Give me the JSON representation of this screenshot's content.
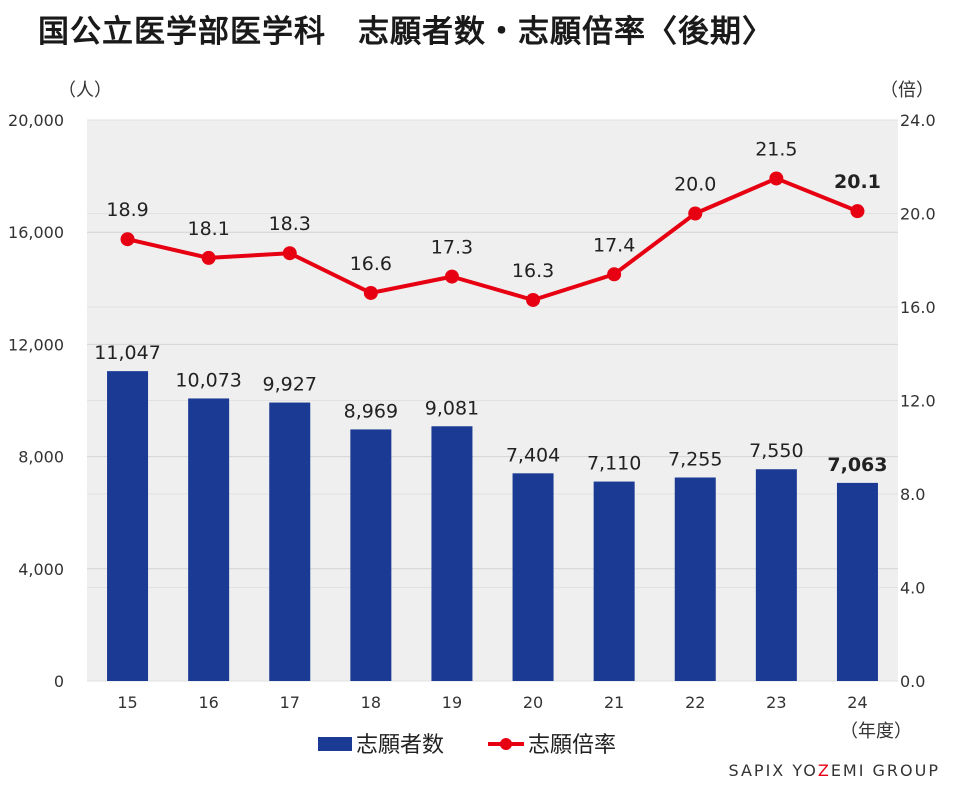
{
  "title": "国公立医学部医学科　志願者数・志願倍率〈後期〉",
  "brand": {
    "pre": "SAPIX YO",
    "accent": "Z",
    "post": "EMI GROUP",
    "accent_color": "#e60012"
  },
  "chart_data": {
    "type": "bar+line",
    "categories": [
      "15",
      "16",
      "17",
      "18",
      "19",
      "20",
      "21",
      "22",
      "23",
      "24"
    ],
    "x_unit": "（年度）",
    "y_left": {
      "unit": "（人）",
      "range": [
        0,
        20000
      ],
      "ticks": [
        "0",
        "4,000",
        "8,000",
        "12,000",
        "16,000",
        "20,000"
      ]
    },
    "y_right": {
      "unit": "（倍）",
      "range": [
        0,
        24
      ],
      "ticks": [
        "0.0",
        "4.0",
        "8.0",
        "12.0",
        "16.0",
        "20.0",
        "24.0"
      ]
    },
    "series": [
      {
        "name": "志願者数",
        "type": "bar",
        "axis": "left",
        "color": "#1a3a94",
        "values": [
          11047,
          10073,
          9927,
          8969,
          9081,
          7404,
          7110,
          7255,
          7550,
          7063
        ],
        "labels": [
          "11,047",
          "10,073",
          "9,927",
          "8,969",
          "9,081",
          "7,404",
          "7,110",
          "7,255",
          "7,550",
          "7,063"
        ]
      },
      {
        "name": "志願倍率",
        "type": "line",
        "axis": "right",
        "color": "#e60012",
        "values": [
          18.9,
          18.1,
          18.3,
          16.6,
          17.3,
          16.3,
          17.4,
          20.0,
          21.5,
          20.1
        ],
        "labels": [
          "18.9",
          "18.1",
          "18.3",
          "16.6",
          "17.3",
          "16.3",
          "17.4",
          "20.0",
          "21.5",
          "20.1"
        ]
      }
    ],
    "highlight_last": true,
    "plot_background": "#efefef",
    "grid": true,
    "legend_position": "bottom"
  }
}
